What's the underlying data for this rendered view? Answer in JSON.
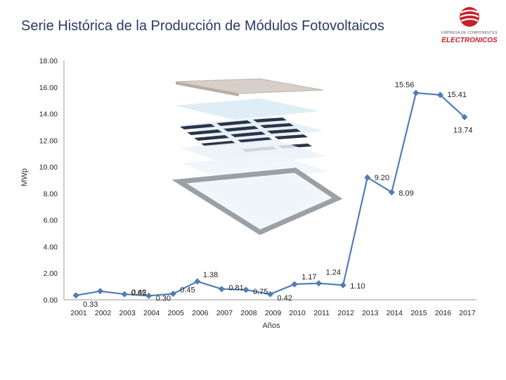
{
  "header": {
    "title": "Serie Histórica de la Producción de  Módulos Fotovoltaicos",
    "logo_small_text": "EMPRESA DE COMPONENTES",
    "logo_brand_text": "ELECTRONICOS"
  },
  "colors": {
    "line": "#4f7fb8",
    "marker": "#4f7fb8",
    "title": "#2b3a67",
    "brand": "#c8202a"
  },
  "chart_data": {
    "type": "line",
    "title": "",
    "xlabel": "Años",
    "ylabel": "MWp",
    "ylim": [
      0,
      18
    ],
    "y_ticks": [
      "0.00",
      "2.00",
      "4.00",
      "6.00",
      "8.00",
      "10.00",
      "12.00",
      "14.00",
      "16.00",
      "18.00"
    ],
    "grid": false,
    "legend": "none",
    "categories": [
      "2001",
      "2002",
      "2003",
      "2004",
      "2005",
      "2006",
      "2007",
      "2008",
      "2009",
      "2010",
      "2011",
      "2012",
      "2013",
      "2014",
      "2015",
      "2016",
      "2017"
    ],
    "series": [
      {
        "name": "",
        "values": [
          0.33,
          0.65,
          0.42,
          0.3,
          0.45,
          1.38,
          0.81,
          0.75,
          0.42,
          1.17,
          1.24,
          1.1,
          9.2,
          8.09,
          15.56,
          15.41,
          13.74
        ],
        "labels": [
          "0.33",
          "0.65",
          "0.42",
          "0.30",
          "0.45",
          "1.38",
          "0.81",
          "0.75",
          "0.42",
          "1.17",
          "1.24",
          "1.10",
          "9.20",
          "8.09",
          "15.56",
          "15.41",
          "13.74"
        ]
      }
    ]
  }
}
